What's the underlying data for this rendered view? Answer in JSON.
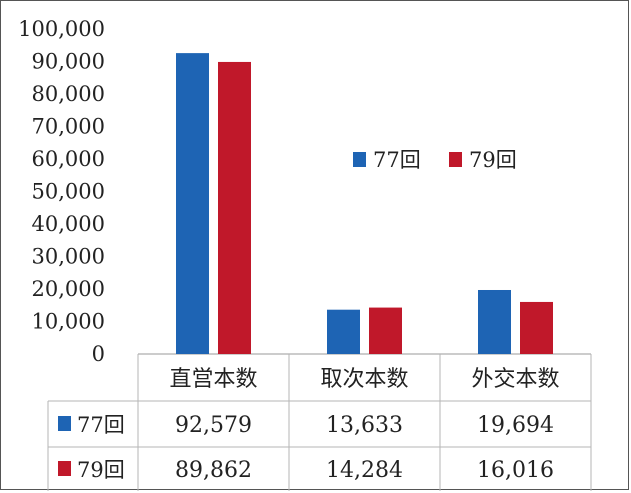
{
  "chart_data": {
    "type": "bar",
    "categories": [
      "直営本数",
      "取次本数",
      "外交本数"
    ],
    "series": [
      {
        "name": "77回",
        "values": [
          92579,
          13633,
          19694
        ],
        "color": "#1e64b4"
      },
      {
        "name": "79回",
        "values": [
          89862,
          14284,
          16016
        ],
        "color": "#c0182a"
      }
    ],
    "table_values": [
      [
        "92,579",
        "13,633",
        "19,694"
      ],
      [
        "89,862",
        "14,284",
        "16,016"
      ]
    ],
    "ylim": [
      0,
      100000
    ],
    "yticks": [
      "0",
      "10,000",
      "20,000",
      "30,000",
      "40,000",
      "50,000",
      "60,000",
      "70,000",
      "80,000",
      "90,000",
      "100,000"
    ],
    "grid": false,
    "legend": "center-right",
    "data_table": true
  }
}
